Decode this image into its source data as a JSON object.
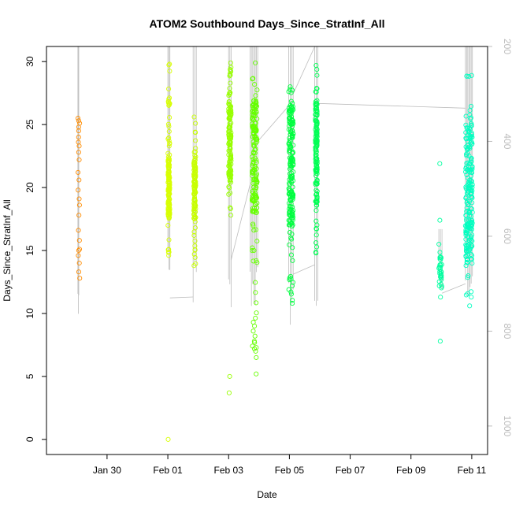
{
  "chart_data": {
    "type": "scatter",
    "title": "ATOM2 Southbound Days_Since_StratInf_All",
    "xlabel": "Date",
    "ylabel": "Days_Since_StratInf_All",
    "xlim": [
      "2017-01-28T00:10",
      "2017-02-11T12:30"
    ],
    "ylim": [
      -1.2,
      31.2
    ],
    "y2lim": [
      200.0,
      1060.0
    ],
    "x_ticks": [
      {
        "date": "2017-01-30",
        "label": "Jan 30"
      },
      {
        "date": "2017-02-01",
        "label": "Feb 01"
      },
      {
        "date": "2017-02-03",
        "label": "Feb 03"
      },
      {
        "date": "2017-02-05",
        "label": "Feb 05"
      },
      {
        "date": "2017-02-07",
        "label": "Feb 07"
      },
      {
        "date": "2017-02-09",
        "label": "Feb 09"
      },
      {
        "date": "2017-02-11",
        "label": "Feb 11"
      }
    ],
    "y_ticks": [
      0,
      5,
      10,
      15,
      20,
      25,
      30
    ],
    "y2_ticks": [
      200,
      400,
      600,
      800,
      1000
    ],
    "y2_reversed": true,
    "grid": false,
    "marker": "open-circle",
    "colors": {
      "flight_track": "#bdbdbd",
      "right_axis": "#bdbdbd",
      "box": "#000000"
    },
    "clusters": [
      {
        "x_start": "2017-01-29T01:00",
        "x_end": "2017-01-29T01:12",
        "points": [
          [
            12.8,
            13.3,
            14.0,
            14.6,
            15.0,
            15.1,
            15.8,
            16.6,
            17.8,
            18.6,
            19.1,
            19.8,
            20.6,
            21.2,
            22.2,
            22.8,
            23.3,
            23.6,
            24.0,
            24.5,
            24.8,
            25.1,
            25.3,
            25.5
          ]
        ],
        "color": "#ff8c00"
      },
      {
        "x_start": "2017-02-01T00:10",
        "x_end": "2017-02-01T01:30",
        "range": [
          14.6,
          29.8
        ],
        "core": [
          17.5,
          22.5
        ],
        "count": 150,
        "outliers": [
          0.0
        ],
        "color": "#d8ff00"
      },
      {
        "x_start": "2017-02-01T20:30",
        "x_end": "2017-02-01T22:00",
        "range": [
          13.8,
          25.6
        ],
        "core": [
          17.5,
          22.5
        ],
        "count": 120,
        "outliers": [],
        "color": "#c8ff00"
      },
      {
        "x_start": "2017-02-03T00:00",
        "x_end": "2017-02-03T02:00",
        "range": [
          17.8,
          29.9
        ],
        "core": [
          20.5,
          27.0
        ],
        "count": 140,
        "outliers": [
          5.0,
          3.7
        ],
        "color": "#98ff00"
      },
      {
        "x_start": "2017-02-03T18:30",
        "x_end": "2017-02-03T22:30",
        "range": [
          7.0,
          29.9
        ],
        "core": [
          18.0,
          27.0
        ],
        "count": 180,
        "outliers": [
          5.2,
          6.5,
          7.2,
          7.8,
          8.2,
          8.6,
          9.0
        ],
        "color": "#66ff00"
      },
      {
        "x_start": "2017-02-04T23:30",
        "x_end": "2017-02-05T03:00",
        "range": [
          10.8,
          28.0
        ],
        "core": [
          17.0,
          26.5
        ],
        "count": 200,
        "outliers": [],
        "color": "#00ff40"
      },
      {
        "x_start": "2017-02-05T20:30",
        "x_end": "2017-02-05T22:00",
        "range": [
          14.8,
          29.7
        ],
        "core": [
          18.0,
          27.0
        ],
        "count": 150,
        "outliers": [],
        "color": "#00ff55"
      },
      {
        "x_start": "2017-02-09T22:00",
        "x_end": "2017-02-10T00:30",
        "range": [
          11.3,
          15.5
        ],
        "core": [
          12.0,
          14.5
        ],
        "count": 30,
        "outliers": [
          7.8,
          17.4,
          21.9
        ],
        "color": "#00ffa0"
      },
      {
        "x_start": "2017-02-10T19:00",
        "x_end": "2017-02-11T00:30",
        "range": [
          10.6,
          28.9
        ],
        "core": [
          14.0,
          25.0
        ],
        "count": 210,
        "outliers": [],
        "color": "#00ffc0"
      }
    ],
    "flight_tracks": [
      {
        "x_start": "2017-01-29T01:00",
        "x_end": "2017-01-29T01:40",
        "pressure_top": 190,
        "pressure_bottom": 800
      },
      {
        "x_start": "2017-02-01T00:00",
        "x_end": "2017-02-01T01:40",
        "pressure_top": 190,
        "pressure_bottom": 752
      },
      {
        "x_start": "2017-02-01T20:00",
        "x_end": "2017-02-01T22:30",
        "pressure_top": 190,
        "pressure_bottom": 760
      },
      {
        "x_start": "2017-02-03T00:00",
        "x_end": "2017-02-03T02:00",
        "pressure_top": 190,
        "pressure_bottom": 790
      },
      {
        "x_start": "2017-02-03T17:00",
        "x_end": "2017-02-03T23:00",
        "pressure_top": 190,
        "pressure_bottom": 770
      },
      {
        "x_start": "2017-02-04T23:30",
        "x_end": "2017-02-05T03:00",
        "pressure_top": 190,
        "pressure_bottom": 800
      },
      {
        "x_start": "2017-02-05T20:00",
        "x_end": "2017-02-05T22:30",
        "pressure_top": 190,
        "pressure_bottom": 780
      },
      {
        "x_start": "2017-02-09T22:00",
        "x_end": "2017-02-10T00:30",
        "pressure_top": 585,
        "pressure_bottom": 762
      },
      {
        "x_start": "2017-02-10T19:00",
        "x_end": "2017-02-11T00:30",
        "pressure_top": 190,
        "pressure_bottom": 745
      }
    ],
    "track_connectors": [
      [
        [
          "2017-02-01T01:40",
          730
        ],
        [
          "2017-02-01T20:00",
          728
        ]
      ],
      [
        [
          "2017-02-03T02:00",
          650
        ],
        [
          "2017-02-03T17:00",
          490
        ]
      ],
      [
        [
          "2017-02-03T23:00",
          400
        ],
        [
          "2017-02-04T23:30",
          325
        ]
      ],
      [
        [
          "2017-02-05T03:00",
          300
        ],
        [
          "2017-02-05T20:00",
          200
        ]
      ],
      [
        [
          "2017-02-05T03:00",
          680
        ],
        [
          "2017-02-05T20:00",
          660
        ]
      ],
      [
        [
          "2017-02-05T22:30",
          320
        ],
        [
          "2017-02-10T19:00",
          330
        ]
      ],
      [
        [
          "2017-02-10T00:30",
          720
        ],
        [
          "2017-02-10T19:00",
          700
        ]
      ]
    ]
  }
}
